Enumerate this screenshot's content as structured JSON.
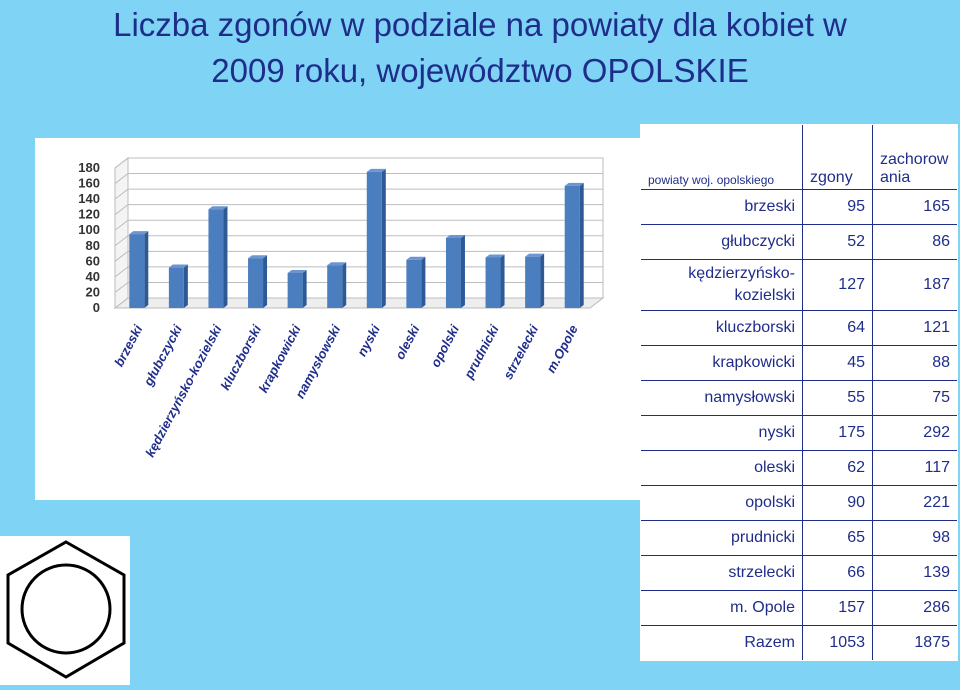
{
  "title_line1": "Liczba zgonów w podziale na powiaty dla kobiet w",
  "title_line2": "2009 roku, województwo OPOLSKIE",
  "chart_data": {
    "type": "bar",
    "categories": [
      "brzeski",
      "głubczycki",
      "kędzierzyńsko-kozielski",
      "kluczborski",
      "krapkowicki",
      "namysłowski",
      "nyski",
      "oleski",
      "opolski",
      "prudnicki",
      "strzelecki",
      "m.Opole"
    ],
    "values": [
      95,
      52,
      127,
      64,
      45,
      55,
      175,
      62,
      90,
      65,
      66,
      157
    ],
    "yticks": [
      0,
      20,
      40,
      60,
      80,
      100,
      120,
      140,
      160,
      180
    ],
    "ylim": [
      0,
      180
    ],
    "bar_color": "#4a7ebf",
    "grid": true
  },
  "table": {
    "headers": [
      "powiaty woj. opolskiego",
      "zgony",
      "zachorowania"
    ],
    "header_lines": [
      "zachorow",
      "ania"
    ],
    "rows": [
      {
        "name": "brzeski",
        "zgony": "95",
        "zach": "165"
      },
      {
        "name": "głubczycki",
        "zgony": "52",
        "zach": "86"
      },
      {
        "name": "kędzierzyńsko-kozielski",
        "name_lines": [
          "kędzierzyńsko-",
          "kozielski"
        ],
        "zgony": "127",
        "zach": "187"
      },
      {
        "name": "kluczborski",
        "zgony": "64",
        "zach": "121"
      },
      {
        "name": "krapkowicki",
        "zgony": "45",
        "zach": "88"
      },
      {
        "name": "namysłowski",
        "zgony": "55",
        "zach": "75"
      },
      {
        "name": "nyski",
        "zgony": "175",
        "zach": "292"
      },
      {
        "name": "oleski",
        "zgony": "62",
        "zach": "117"
      },
      {
        "name": "opolski",
        "zgony": "90",
        "zach": "221"
      },
      {
        "name": "prudnicki",
        "zgony": "65",
        "zach": "98"
      },
      {
        "name": "strzelecki",
        "zgony": "66",
        "zach": "139"
      },
      {
        "name": "m. Opole",
        "zgony": "157",
        "zach": "286"
      },
      {
        "name": "Razem",
        "zgony": "1053",
        "zach": "1875"
      }
    ]
  }
}
